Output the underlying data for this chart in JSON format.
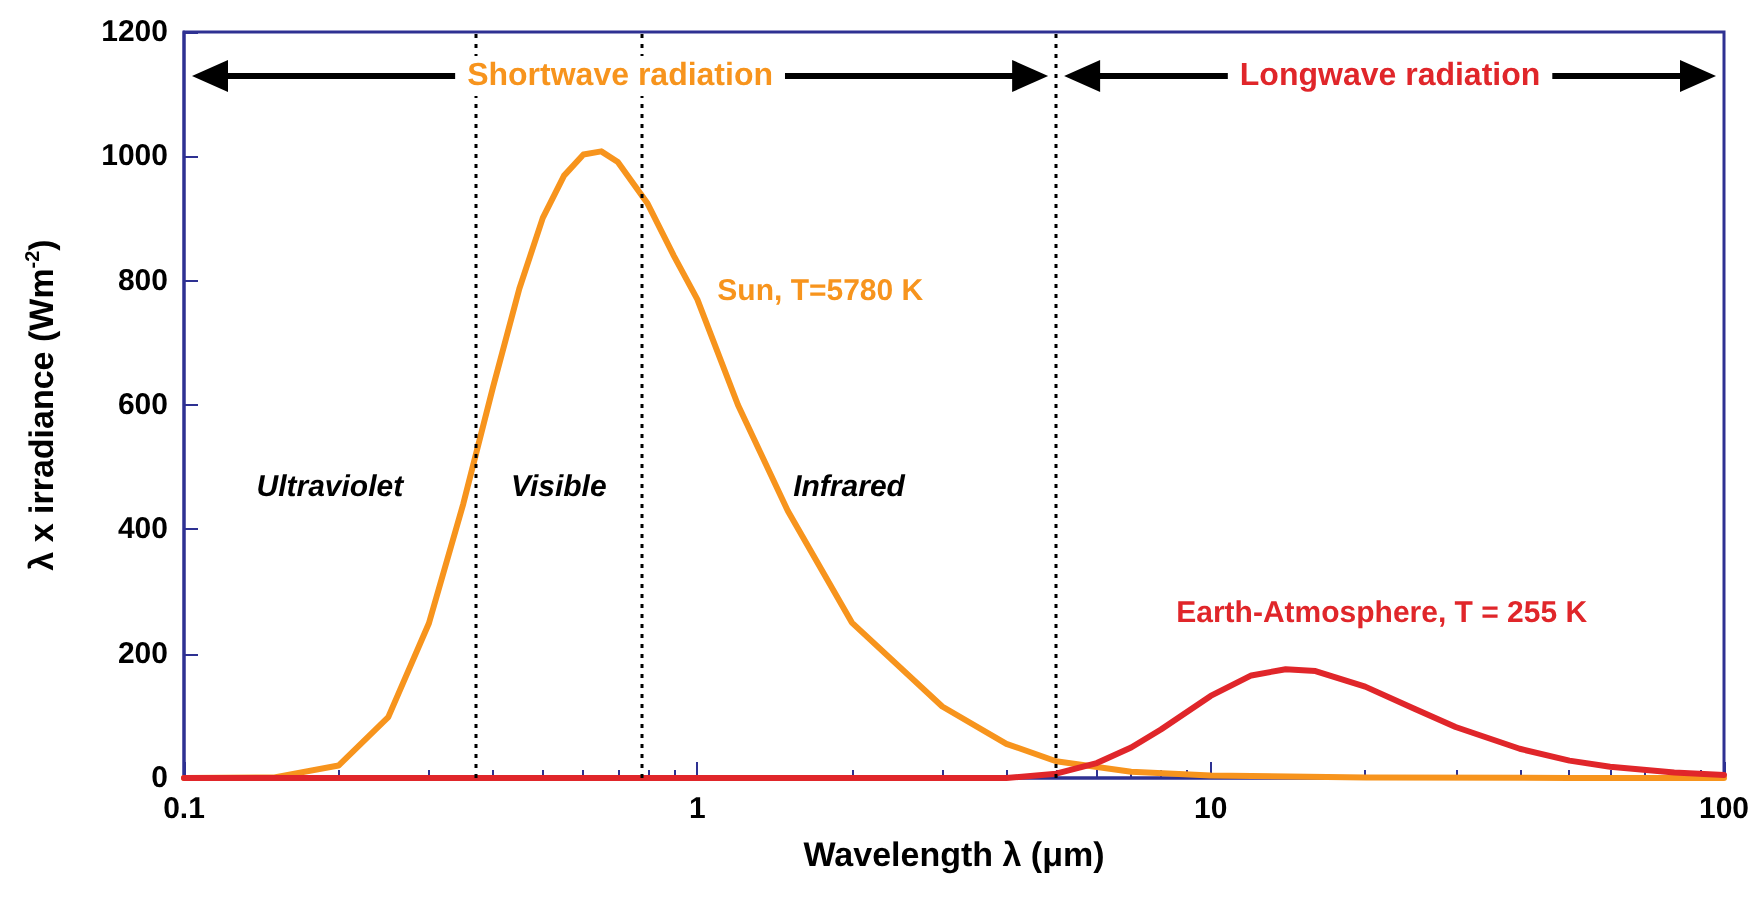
{
  "chart_data": {
    "type": "line",
    "xlabel": "Wavelength λ (μm)",
    "ylabel": "λ x irradiance (Wm$^{-2}$)",
    "log": "x",
    "xlim": [
      0.1,
      100
    ],
    "xticks": [
      0.1,
      1,
      10,
      100
    ],
    "ylim": [
      0,
      1200
    ],
    "yticks": [
      0,
      200,
      400,
      600,
      800,
      1000,
      1200
    ],
    "grid": false,
    "legend": false,
    "marker": "none",
    "series": [
      {
        "name": "Sun, T=5780 K",
        "color": "#f7941d",
        "x": [
          0.1,
          0.15,
          0.2,
          0.25,
          0.3,
          0.35,
          0.4,
          0.45,
          0.5,
          0.55,
          0.6,
          0.65,
          0.7,
          0.8,
          0.9,
          1,
          1.2,
          1.5,
          2,
          3,
          4,
          5,
          7,
          10,
          20,
          50,
          100
        ],
        "values": [
          0,
          1,
          20,
          98,
          249,
          441,
          629,
          787,
          901,
          969,
          1003,
          1008,
          991,
          924,
          840,
          770,
          600,
          430,
          250,
          115,
          55,
          27,
          10,
          4,
          1,
          0,
          0
        ]
      },
      {
        "name": "Earth-Atmosphere, T = 255 K",
        "color": "#e0262a",
        "x": [
          0.1,
          1,
          4,
          5,
          6,
          7,
          8,
          10,
          12,
          14,
          16,
          20,
          25,
          30,
          40,
          50,
          60,
          80,
          100
        ],
        "values": [
          0,
          0,
          0,
          7,
          24,
          49,
          78,
          132,
          165,
          175,
          172,
          147,
          111,
          82,
          47,
          28,
          18,
          9,
          5
        ]
      }
    ],
    "ref_lines": [
      {
        "axis": "x",
        "value": 0.37,
        "color": "#000000",
        "line_style": "dotted"
      },
      {
        "axis": "x",
        "value": 0.78,
        "color": "#000000",
        "line_style": "dotted"
      },
      {
        "axis": "x",
        "value": 5,
        "color": "#000000",
        "line_style": "dotted"
      }
    ],
    "annotations": [
      "Shortwave radiation",
      "Longwave radiation",
      "Ultraviolet",
      "Visible",
      "Infrared"
    ]
  }
}
